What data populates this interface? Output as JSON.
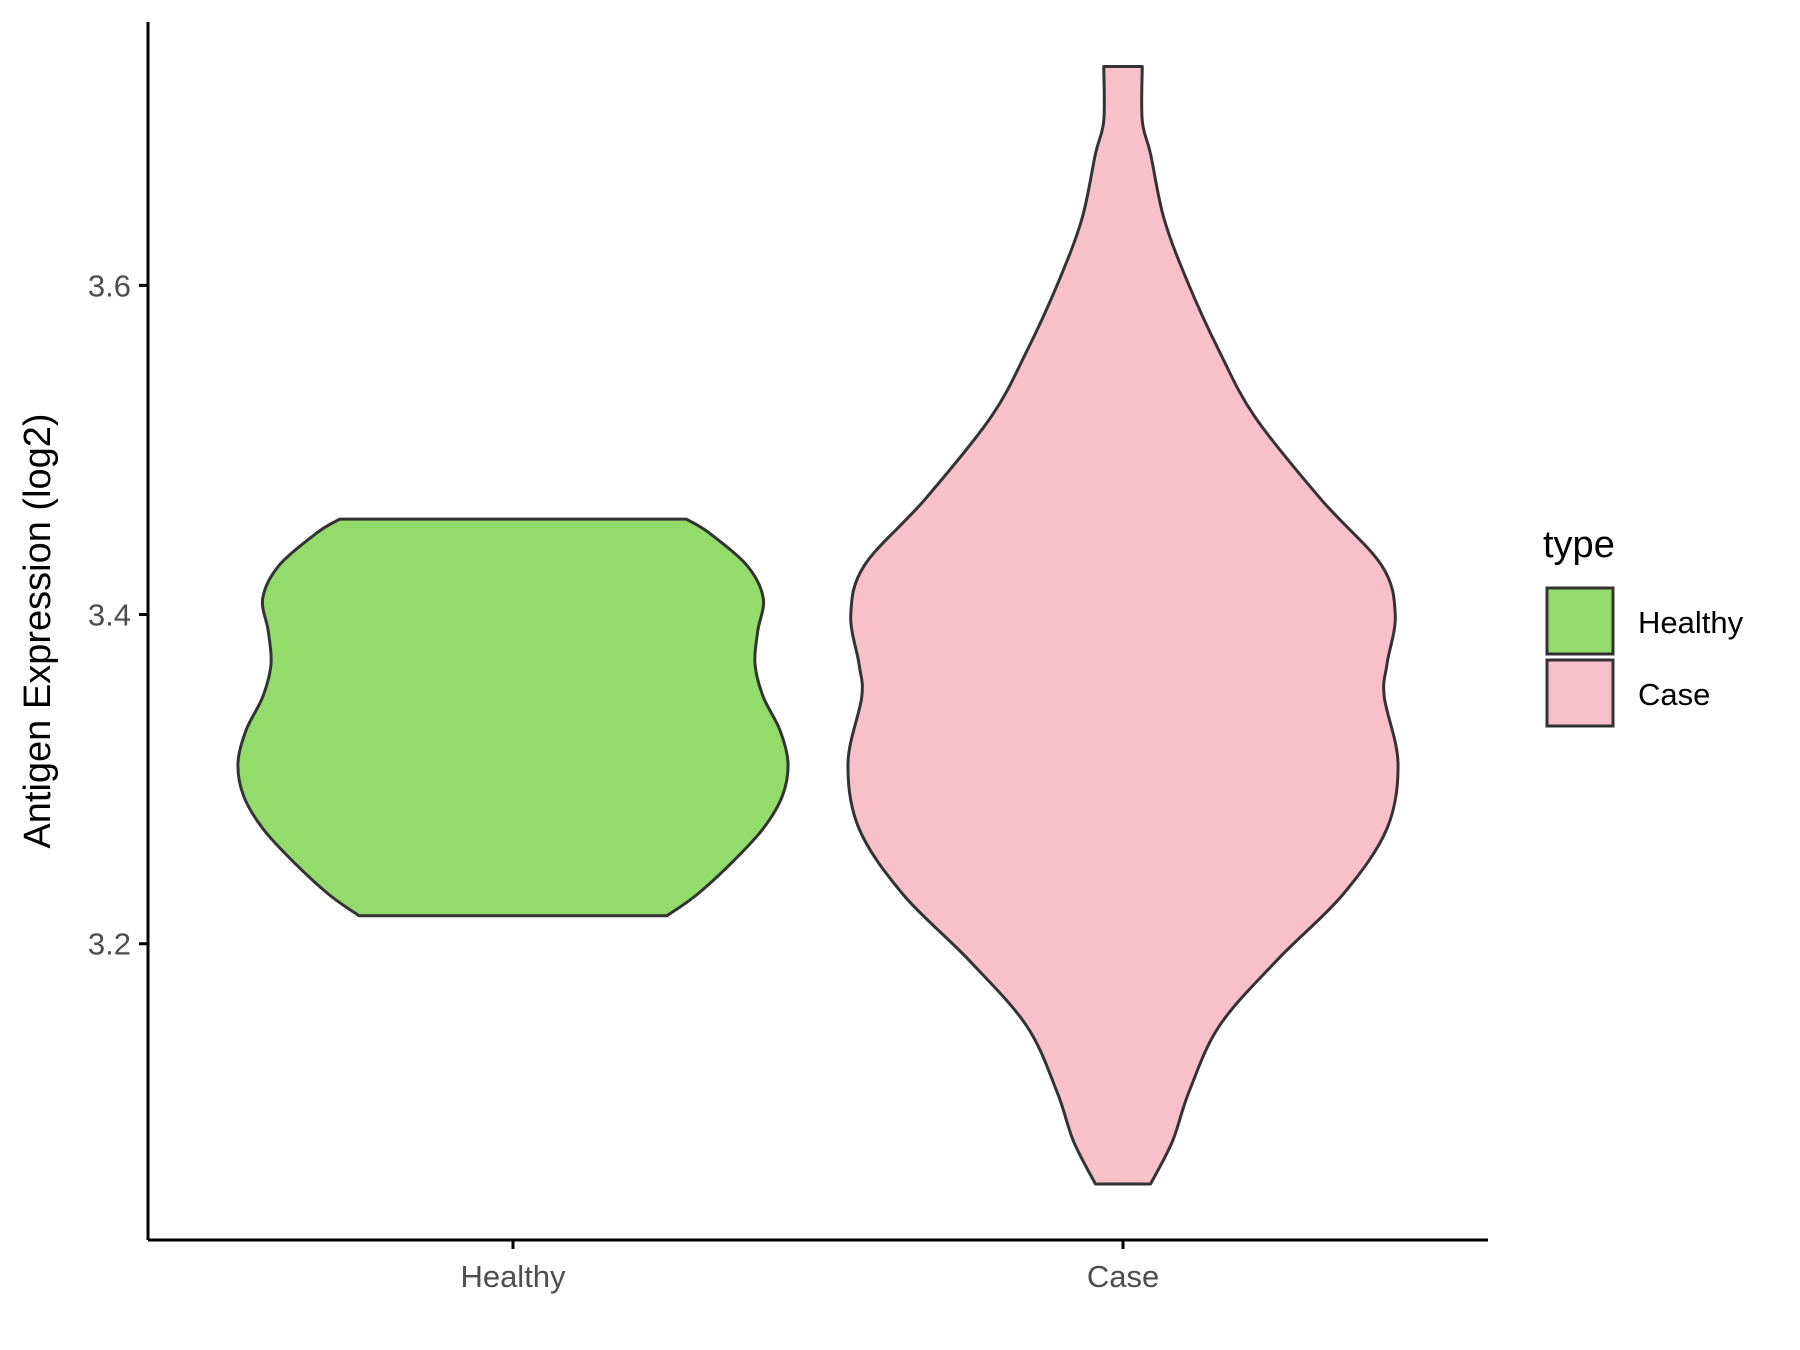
{
  "chart_data": {
    "type": "violin",
    "title": "",
    "xlabel": "",
    "ylabel": "Antigen Expression (log2)",
    "ylim": [
      3.02,
      3.76
    ],
    "yticks": [
      3.2,
      3.4,
      3.6
    ],
    "ytick_labels": [
      "3.2",
      "3.4",
      "3.6"
    ],
    "categories": [
      "Healthy",
      "Case"
    ],
    "grid": false,
    "legend": {
      "title": "type",
      "position": "right",
      "entries": [
        {
          "label": "Healthy",
          "color": "#93DC6B"
        },
        {
          "label": "Case",
          "color": "#F7C0CB"
        }
      ]
    },
    "series": [
      {
        "category": "Healthy",
        "color": "#93DC6B",
        "min": 3.217,
        "max": 3.458,
        "density_profile": [
          [
            3.217,
            0.56
          ],
          [
            3.23,
            0.67
          ],
          [
            3.25,
            0.8
          ],
          [
            3.27,
            0.91
          ],
          [
            3.29,
            0.98
          ],
          [
            3.31,
            1.0
          ],
          [
            3.33,
            0.97
          ],
          [
            3.35,
            0.91
          ],
          [
            3.37,
            0.88
          ],
          [
            3.39,
            0.89
          ],
          [
            3.41,
            0.91
          ],
          [
            3.43,
            0.85
          ],
          [
            3.45,
            0.71
          ],
          [
            3.458,
            0.63
          ]
        ]
      },
      {
        "category": "Case",
        "color": "#F7C0CB",
        "min": 3.054,
        "max": 3.733,
        "density_profile": [
          [
            3.054,
            0.1
          ],
          [
            3.08,
            0.18
          ],
          [
            3.11,
            0.24
          ],
          [
            3.15,
            0.35
          ],
          [
            3.19,
            0.56
          ],
          [
            3.23,
            0.8
          ],
          [
            3.27,
            0.96
          ],
          [
            3.31,
            1.0
          ],
          [
            3.35,
            0.95
          ],
          [
            3.37,
            0.96
          ],
          [
            3.4,
            0.99
          ],
          [
            3.43,
            0.94
          ],
          [
            3.47,
            0.72
          ],
          [
            3.52,
            0.48
          ],
          [
            3.56,
            0.35
          ],
          [
            3.6,
            0.24
          ],
          [
            3.64,
            0.15
          ],
          [
            3.68,
            0.1
          ],
          [
            3.7,
            0.07
          ],
          [
            3.733,
            0.07
          ]
        ]
      }
    ]
  }
}
